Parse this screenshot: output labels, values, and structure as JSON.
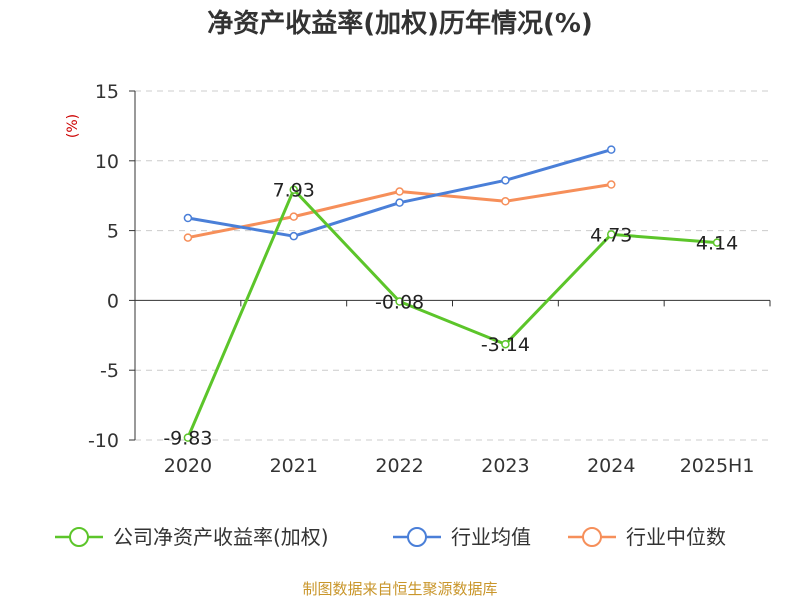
{
  "chart_data": {
    "type": "line",
    "title": "净资产收益率(加权)历年情况(%)",
    "ylabel": "(%)",
    "categories": [
      "2020",
      "2021",
      "2022",
      "2023",
      "2024",
      "2025H1"
    ],
    "yticks": [
      "15",
      "10",
      "5",
      "0",
      "-5",
      "-10"
    ],
    "ylim": [
      -10,
      15
    ],
    "grid": true,
    "legend_position": "bottom",
    "series": [
      {
        "name": "公司净资产收益率(加权)",
        "color": "#5cc52a",
        "values": [
          -9.83,
          7.93,
          -0.08,
          -3.14,
          4.73,
          4.14
        ],
        "labels": [
          "-9.83",
          "7.93",
          "-0.08",
          "-3.14",
          "4.73",
          "4.14"
        ]
      },
      {
        "name": "行业均值",
        "color": "#4a7fd8",
        "values": [
          5.9,
          4.6,
          7.0,
          8.6,
          10.8,
          null
        ]
      },
      {
        "name": "行业中位数",
        "color": "#f68f5a",
        "values": [
          4.5,
          6.0,
          7.8,
          7.1,
          8.3,
          null
        ]
      }
    ]
  },
  "source": "制图数据来自恒生聚源数据库"
}
